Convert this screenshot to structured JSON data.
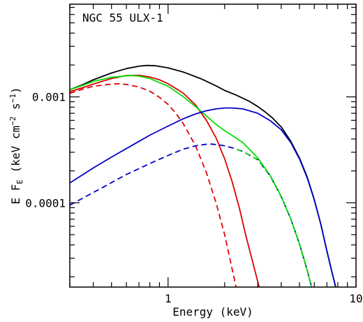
{
  "chart_data": {
    "type": "line",
    "title": "",
    "annotation": "NGC 55 ULX-1",
    "xlabel": "Energy (keV)",
    "ylabel": {
      "prefix": "E F",
      "sub": "E",
      "unit_open": " (keV cm",
      "exp1": "−2",
      "mid": " s",
      "exp2": "−1",
      "unit_close": ")"
    },
    "xscale": "log",
    "yscale": "log",
    "xlim": [
      0.3,
      10
    ],
    "ylim": [
      1.6e-05,
      0.0075
    ],
    "xticks": [
      {
        "value": 1,
        "label": "1"
      },
      {
        "value": 10,
        "label": "10"
      }
    ],
    "yticks": [
      {
        "value": 0.0001,
        "label": "0.0001"
      },
      {
        "value": 0.001,
        "label": "0.001"
      }
    ],
    "grid": false,
    "legend": "none",
    "series": [
      {
        "color": "#000000",
        "dash": "solid",
        "points": [
          [
            0.3,
            0.00117
          ],
          [
            0.35,
            0.0013
          ],
          [
            0.4,
            0.00145
          ],
          [
            0.5,
            0.00168
          ],
          [
            0.6,
            0.00185
          ],
          [
            0.7,
            0.00195
          ],
          [
            0.77,
            0.00198
          ],
          [
            0.85,
            0.00197
          ],
          [
            1.0,
            0.00188
          ],
          [
            1.2,
            0.00172
          ],
          [
            1.5,
            0.00148
          ],
          [
            1.8,
            0.00127
          ],
          [
            2.0,
            0.00115
          ],
          [
            2.3,
            0.00104
          ],
          [
            2.7,
            0.00091
          ],
          [
            3.0,
            0.00081
          ],
          [
            3.3,
            0.000717
          ],
          [
            3.6,
            0.00063
          ],
          [
            4.0,
            0.00052
          ],
          [
            4.5,
            0.00038
          ],
          [
            5.0,
            0.000265
          ],
          [
            5.5,
            0.000175
          ],
          [
            6.0,
            0.000107
          ],
          [
            6.5,
            6.25e-05
          ],
          [
            7.0,
            3.5e-05
          ],
          [
            7.5,
            2.1e-05
          ],
          [
            7.8,
            1.6e-05
          ]
        ]
      },
      {
        "color": "#e00000",
        "dash": "solid",
        "points": [
          [
            0.3,
            0.00112
          ],
          [
            0.35,
            0.00122
          ],
          [
            0.4,
            0.00132
          ],
          [
            0.5,
            0.00149
          ],
          [
            0.6,
            0.00159
          ],
          [
            0.7,
            0.0016
          ],
          [
            0.8,
            0.00154
          ],
          [
            0.9,
            0.00145
          ],
          [
            1.0,
            0.00133
          ],
          [
            1.2,
            0.00109
          ],
          [
            1.4,
            0.00084
          ],
          [
            1.6,
            0.0006
          ],
          [
            1.8,
            0.00041
          ],
          [
            2.0,
            0.00026
          ],
          [
            2.2,
            0.000155
          ],
          [
            2.4,
            8.8e-05
          ],
          [
            2.6,
            4.8e-05
          ],
          [
            2.8,
            2.9e-05
          ],
          [
            3.0,
            1.8e-05
          ],
          [
            3.05,
            1.6e-05
          ]
        ]
      },
      {
        "color": "#e00000",
        "dash": "dashed",
        "points": [
          [
            0.3,
            0.00108
          ],
          [
            0.35,
            0.00118
          ],
          [
            0.4,
            0.00126
          ],
          [
            0.5,
            0.00132
          ],
          [
            0.55,
            0.00133
          ],
          [
            0.6,
            0.00131
          ],
          [
            0.7,
            0.00124
          ],
          [
            0.8,
            0.00113
          ],
          [
            0.9,
            0.00099
          ],
          [
            1.0,
            0.00085
          ],
          [
            1.1,
            0.0007
          ],
          [
            1.2,
            0.000565
          ],
          [
            1.4,
            0.000345
          ],
          [
            1.6,
            0.000192
          ],
          [
            1.8,
            0.0001
          ],
          [
            2.0,
            5e-05
          ],
          [
            2.2,
            2.3e-05
          ],
          [
            2.3,
            1.6e-05
          ]
        ]
      },
      {
        "color": "#00e000",
        "dash": "solid",
        "points": [
          [
            0.3,
            0.00117
          ],
          [
            0.35,
            0.00128
          ],
          [
            0.4,
            0.0014
          ],
          [
            0.5,
            0.00153
          ],
          [
            0.6,
            0.00158
          ],
          [
            0.65,
            0.00159
          ],
          [
            0.7,
            0.00157
          ],
          [
            0.8,
            0.00149
          ],
          [
            1.0,
            0.00126
          ],
          [
            1.2,
            0.00101
          ],
          [
            1.4,
            0.00081
          ],
          [
            1.6,
            0.00066
          ],
          [
            1.8,
            0.00055
          ],
          [
            2.0,
            0.00048
          ],
          [
            2.2,
            0.00043
          ],
          [
            2.5,
            0.00037
          ],
          [
            3.0,
            0.000265
          ],
          [
            3.5,
            0.00018
          ],
          [
            4.0,
            0.000115
          ],
          [
            4.5,
            7e-05
          ],
          [
            5.0,
            4.1e-05
          ],
          [
            5.5,
            2.3e-05
          ],
          [
            5.8,
            1.6e-05
          ]
        ]
      },
      {
        "color": "#0000c8",
        "dash": "solid",
        "points": [
          [
            0.3,
            0.000154
          ],
          [
            0.4,
            0.000213
          ],
          [
            0.5,
            0.00027
          ],
          [
            0.6,
            0.000325
          ],
          [
            0.7,
            0.00038
          ],
          [
            0.8,
            0.000435
          ],
          [
            1.0,
            0.00053
          ],
          [
            1.2,
            0.00062
          ],
          [
            1.4,
            0.00069
          ],
          [
            1.6,
            0.00074
          ],
          [
            1.8,
            0.00077
          ],
          [
            2.0,
            0.000785
          ],
          [
            2.2,
            0.000785
          ],
          [
            2.5,
            0.00077
          ],
          [
            3.0,
            0.0007
          ],
          [
            3.5,
            0.000595
          ],
          [
            4.0,
            0.00049
          ],
          [
            4.5,
            0.00037
          ],
          [
            5.0,
            0.00026
          ],
          [
            5.5,
            0.000172
          ],
          [
            6.0,
            0.000106
          ],
          [
            6.5,
            6.25e-05
          ],
          [
            7.0,
            3.5e-05
          ],
          [
            7.5,
            2.1e-05
          ],
          [
            7.8,
            1.6e-05
          ]
        ]
      },
      {
        "color": "#0000c8",
        "dash": "dashed",
        "points": [
          [
            0.3,
            9.5e-05
          ],
          [
            0.4,
            0.000125
          ],
          [
            0.5,
            0.000155
          ],
          [
            0.6,
            0.000185
          ],
          [
            0.7,
            0.00021
          ],
          [
            0.8,
            0.000235
          ],
          [
            1.0,
            0.00028
          ],
          [
            1.2,
            0.00032
          ],
          [
            1.4,
            0.000345
          ],
          [
            1.6,
            0.000357
          ],
          [
            1.7,
            0.000358
          ],
          [
            1.8,
            0.000355
          ],
          [
            2.0,
            0.000345
          ],
          [
            2.2,
            0.00033
          ],
          [
            2.5,
            0.000305
          ],
          [
            3.0,
            0.000255
          ],
          [
            3.5,
            0.000178
          ],
          [
            4.0,
            0.000114
          ],
          [
            4.5,
            7e-05
          ],
          [
            5.0,
            4.1e-05
          ],
          [
            5.5,
            2.3e-05
          ],
          [
            5.8,
            1.6e-05
          ]
        ]
      },
      {
        "color": "#00e000",
        "dash": "dashed-overlay",
        "points": [
          [
            2.2,
            0.00033
          ],
          [
            2.5,
            0.000305
          ],
          [
            3.0,
            0.000255
          ],
          [
            3.5,
            0.000178
          ],
          [
            4.0,
            0.000114
          ],
          [
            4.5,
            7e-05
          ],
          [
            5.0,
            4.1e-05
          ],
          [
            5.5,
            2.3e-05
          ],
          [
            5.8,
            1.6e-05
          ]
        ]
      }
    ]
  }
}
